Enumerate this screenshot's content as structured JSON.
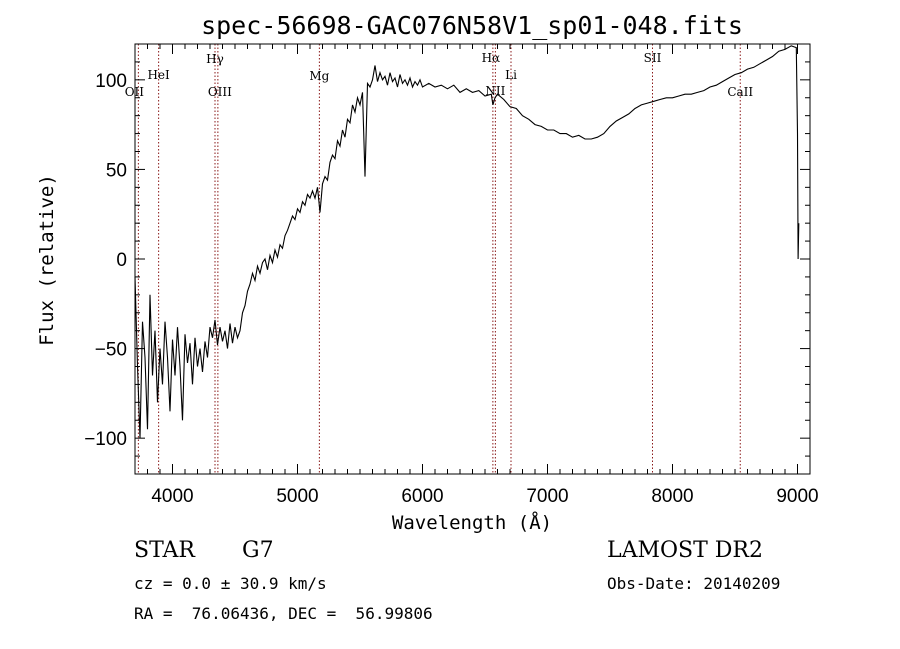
{
  "chart_data": {
    "type": "line",
    "title": "spec-56698-GAC076N58V1_sp01-048.fits",
    "xlabel": "Wavelength (Å)",
    "ylabel": "Flux (relative)",
    "xlim": [
      3700,
      9100
    ],
    "ylim": [
      -120,
      120
    ],
    "x_ticks": [
      4000,
      5000,
      6000,
      7000,
      8000,
      9000
    ],
    "y_ticks": [
      -100,
      -50,
      0,
      50,
      100
    ],
    "grid": false,
    "series": [
      {
        "color": "#000000",
        "points": [
          [
            3700,
            -10
          ],
          [
            3720,
            -60
          ],
          [
            3740,
            -100
          ],
          [
            3760,
            -35
          ],
          [
            3780,
            -55
          ],
          [
            3800,
            -95
          ],
          [
            3820,
            -20
          ],
          [
            3840,
            -65
          ],
          [
            3860,
            -40
          ],
          [
            3880,
            -80
          ],
          [
            3900,
            -50
          ],
          [
            3920,
            -70
          ],
          [
            3940,
            -35
          ],
          [
            3960,
            -55
          ],
          [
            3980,
            -85
          ],
          [
            4000,
            -45
          ],
          [
            4020,
            -65
          ],
          [
            4040,
            -38
          ],
          [
            4060,
            -60
          ],
          [
            4080,
            -90
          ],
          [
            4100,
            -42
          ],
          [
            4120,
            -58
          ],
          [
            4140,
            -47
          ],
          [
            4160,
            -70
          ],
          [
            4180,
            -44
          ],
          [
            4200,
            -60
          ],
          [
            4220,
            -50
          ],
          [
            4240,
            -63
          ],
          [
            4260,
            -46
          ],
          [
            4280,
            -55
          ],
          [
            4300,
            -38
          ],
          [
            4320,
            -44
          ],
          [
            4340,
            -34
          ],
          [
            4360,
            -48
          ],
          [
            4380,
            -38
          ],
          [
            4400,
            -46
          ],
          [
            4420,
            -40
          ],
          [
            4440,
            -50
          ],
          [
            4460,
            -36
          ],
          [
            4480,
            -47
          ],
          [
            4500,
            -38
          ],
          [
            4520,
            -44
          ],
          [
            4540,
            -40
          ],
          [
            4560,
            -30
          ],
          [
            4580,
            -26
          ],
          [
            4600,
            -18
          ],
          [
            4620,
            -14
          ],
          [
            4640,
            -8
          ],
          [
            4660,
            -12
          ],
          [
            4680,
            -4
          ],
          [
            4700,
            -8
          ],
          [
            4720,
            -2
          ],
          [
            4740,
            0
          ],
          [
            4760,
            -6
          ],
          [
            4780,
            2
          ],
          [
            4800,
            -2
          ],
          [
            4820,
            5
          ],
          [
            4840,
            1
          ],
          [
            4860,
            8
          ],
          [
            4880,
            6
          ],
          [
            4900,
            13
          ],
          [
            4920,
            16
          ],
          [
            4940,
            20
          ],
          [
            4960,
            24
          ],
          [
            4980,
            22
          ],
          [
            5000,
            28
          ],
          [
            5020,
            26
          ],
          [
            5040,
            32
          ],
          [
            5060,
            30
          ],
          [
            5080,
            36
          ],
          [
            5100,
            34
          ],
          [
            5120,
            38
          ],
          [
            5140,
            34
          ],
          [
            5160,
            40
          ],
          [
            5180,
            26
          ],
          [
            5200,
            42
          ],
          [
            5220,
            46
          ],
          [
            5240,
            44
          ],
          [
            5260,
            54
          ],
          [
            5280,
            58
          ],
          [
            5300,
            56
          ],
          [
            5320,
            66
          ],
          [
            5340,
            63
          ],
          [
            5360,
            72
          ],
          [
            5380,
            68
          ],
          [
            5400,
            78
          ],
          [
            5420,
            76
          ],
          [
            5440,
            86
          ],
          [
            5460,
            82
          ],
          [
            5480,
            90
          ],
          [
            5500,
            86
          ],
          [
            5520,
            93
          ],
          [
            5540,
            46
          ],
          [
            5560,
            98
          ],
          [
            5580,
            96
          ],
          [
            5600,
            100
          ],
          [
            5620,
            108
          ],
          [
            5640,
            99
          ],
          [
            5660,
            104
          ],
          [
            5680,
            100
          ],
          [
            5700,
            102
          ],
          [
            5720,
            97
          ],
          [
            5740,
            104
          ],
          [
            5760,
            99
          ],
          [
            5780,
            101
          ],
          [
            5800,
            96
          ],
          [
            5820,
            103
          ],
          [
            5840,
            98
          ],
          [
            5860,
            100
          ],
          [
            5880,
            97
          ],
          [
            5900,
            101
          ],
          [
            5920,
            96
          ],
          [
            5940,
            99
          ],
          [
            5960,
            97
          ],
          [
            5980,
            100
          ],
          [
            6000,
            96
          ],
          [
            6050,
            98
          ],
          [
            6100,
            96
          ],
          [
            6150,
            97
          ],
          [
            6200,
            95
          ],
          [
            6250,
            97
          ],
          [
            6300,
            93
          ],
          [
            6350,
            95
          ],
          [
            6400,
            93
          ],
          [
            6450,
            94
          ],
          [
            6500,
            91
          ],
          [
            6550,
            92
          ],
          [
            6563,
            86
          ],
          [
            6580,
            90
          ],
          [
            6600,
            92
          ],
          [
            6650,
            89
          ],
          [
            6700,
            85
          ],
          [
            6750,
            84
          ],
          [
            6800,
            80
          ],
          [
            6850,
            78
          ],
          [
            6900,
            75
          ],
          [
            6950,
            74
          ],
          [
            7000,
            72
          ],
          [
            7050,
            72
          ],
          [
            7100,
            70
          ],
          [
            7150,
            70
          ],
          [
            7200,
            68
          ],
          [
            7250,
            69
          ],
          [
            7300,
            67
          ],
          [
            7350,
            67
          ],
          [
            7400,
            68
          ],
          [
            7450,
            70
          ],
          [
            7500,
            74
          ],
          [
            7550,
            77
          ],
          [
            7600,
            79
          ],
          [
            7650,
            81
          ],
          [
            7700,
            84
          ],
          [
            7750,
            86
          ],
          [
            7800,
            87
          ],
          [
            7850,
            88
          ],
          [
            7900,
            89
          ],
          [
            7950,
            90
          ],
          [
            8000,
            90
          ],
          [
            8050,
            91
          ],
          [
            8100,
            92
          ],
          [
            8150,
            92
          ],
          [
            8200,
            93
          ],
          [
            8250,
            94
          ],
          [
            8300,
            96
          ],
          [
            8350,
            97
          ],
          [
            8400,
            99
          ],
          [
            8450,
            101
          ],
          [
            8500,
            103
          ],
          [
            8550,
            104
          ],
          [
            8600,
            106
          ],
          [
            8650,
            107
          ],
          [
            8700,
            109
          ],
          [
            8750,
            111
          ],
          [
            8800,
            113
          ],
          [
            8850,
            116
          ],
          [
            8900,
            117
          ],
          [
            8950,
            119
          ],
          [
            8990,
            118
          ],
          [
            9000,
            70
          ],
          [
            9005,
            0
          ],
          [
            9010,
            20
          ]
        ]
      }
    ],
    "lines": [
      {
        "label": "OII",
        "wavelength": 3727
      },
      {
        "label": "HeI",
        "wavelength": 3889
      },
      {
        "label": "Hγ",
        "wavelength": 4340
      },
      {
        "label": "OIII",
        "wavelength": 4363
      },
      {
        "label": "Mg",
        "wavelength": 5175
      },
      {
        "label": "Hα",
        "wavelength": 6563
      },
      {
        "label": "NII",
        "wavelength": 6583
      },
      {
        "label": "Li",
        "wavelength": 6708
      },
      {
        "label": "SII",
        "wavelength": 7840
      },
      {
        "label": "CaII",
        "wavelength": 8542
      }
    ],
    "line_color": "#8b1a1a"
  },
  "info": {
    "class": "STAR",
    "subclass": "G7",
    "survey": "LAMOST DR2",
    "cz": "cz = 0.0 ± 30.9 km/s",
    "obs_date": "Obs-Date: 20140209",
    "coords": "RA =  76.06436, DEC =  56.99806"
  }
}
